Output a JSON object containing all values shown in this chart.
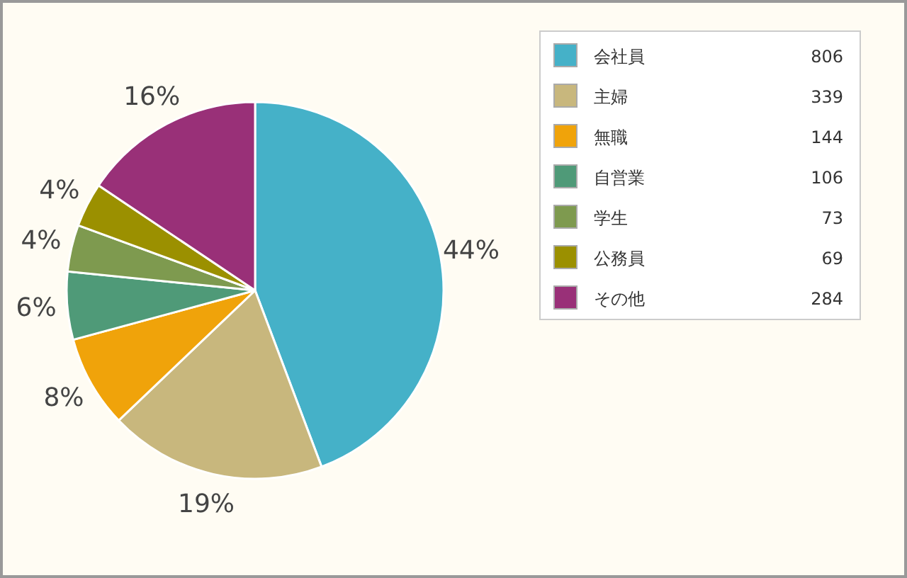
{
  "chart_data": {
    "type": "pie",
    "categories": [
      "会社員",
      "主婦",
      "無職",
      "自営業",
      "学生",
      "公務員",
      "その他"
    ],
    "values": [
      806,
      339,
      144,
      106,
      73,
      69,
      284
    ],
    "colors": [
      "#45b1c8",
      "#c8b77d",
      "#f0a30a",
      "#4f9a78",
      "#7e9a4f",
      "#9b9000",
      "#993078"
    ],
    "annotations": [
      "44%",
      "19%",
      "8%",
      "6%",
      "4%",
      "4%",
      "16%"
    ],
    "data_labels": true,
    "legend": "top right"
  }
}
